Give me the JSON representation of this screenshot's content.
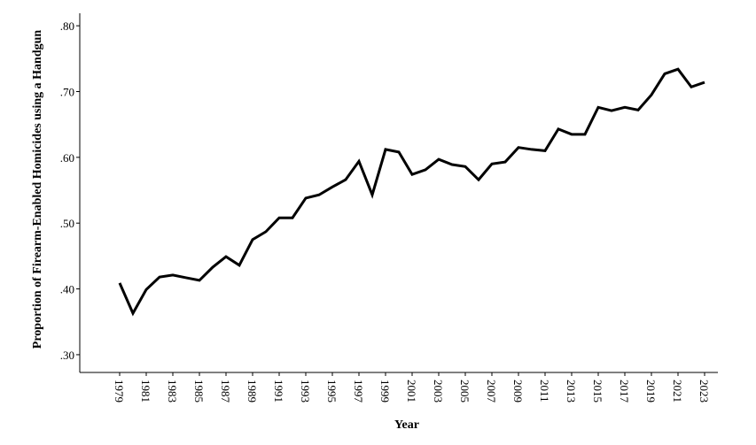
{
  "chart_data": {
    "type": "line",
    "x_label": "Year",
    "y_label": "Proportion of Firearm-Enabled Homicides using a Handgun",
    "x": [
      1979,
      1980,
      1981,
      1982,
      1983,
      1984,
      1985,
      1986,
      1987,
      1988,
      1989,
      1990,
      1991,
      1992,
      1993,
      1994,
      1995,
      1996,
      1997,
      1998,
      1999,
      2000,
      2001,
      2002,
      2003,
      2004,
      2005,
      2006,
      2007,
      2008,
      2009,
      2010,
      2011,
      2012,
      2013,
      2014,
      2015,
      2016,
      2017,
      2018,
      2019,
      2020,
      2021,
      2022,
      2023
    ],
    "series": [
      {
        "color": "#000000",
        "values": [
          0.409,
          0.363,
          0.399,
          0.418,
          0.421,
          0.417,
          0.413,
          0.433,
          0.449,
          0.436,
          0.475,
          0.487,
          0.508,
          0.508,
          0.538,
          0.543,
          0.555,
          0.566,
          0.594,
          0.543,
          0.612,
          0.608,
          0.574,
          0.581,
          0.597,
          0.589,
          0.586,
          0.566,
          0.59,
          0.593,
          0.615,
          0.612,
          0.61,
          0.643,
          0.635,
          0.635,
          0.676,
          0.671,
          0.676,
          0.672,
          0.695,
          0.727,
          0.734,
          0.707,
          0.714
        ]
      }
    ],
    "xlim": [
      1976,
      2024
    ],
    "xticks": [
      1979,
      1981,
      1983,
      1985,
      1987,
      1989,
      1991,
      1993,
      1995,
      1997,
      1999,
      2001,
      2003,
      2005,
      2007,
      2009,
      2011,
      2013,
      2015,
      2017,
      2019,
      2021,
      2023
    ],
    "ylim": [
      0.273,
      0.819
    ],
    "yticks": [
      {
        "value": 0.3,
        "label": ".30"
      },
      {
        "value": 0.4,
        "label": ".40"
      },
      {
        "value": 0.5,
        "label": ".50"
      },
      {
        "value": 0.6,
        "label": ".60"
      },
      {
        "value": 0.7,
        "label": ".70"
      },
      {
        "value": 0.8,
        "label": ".80"
      }
    ]
  }
}
